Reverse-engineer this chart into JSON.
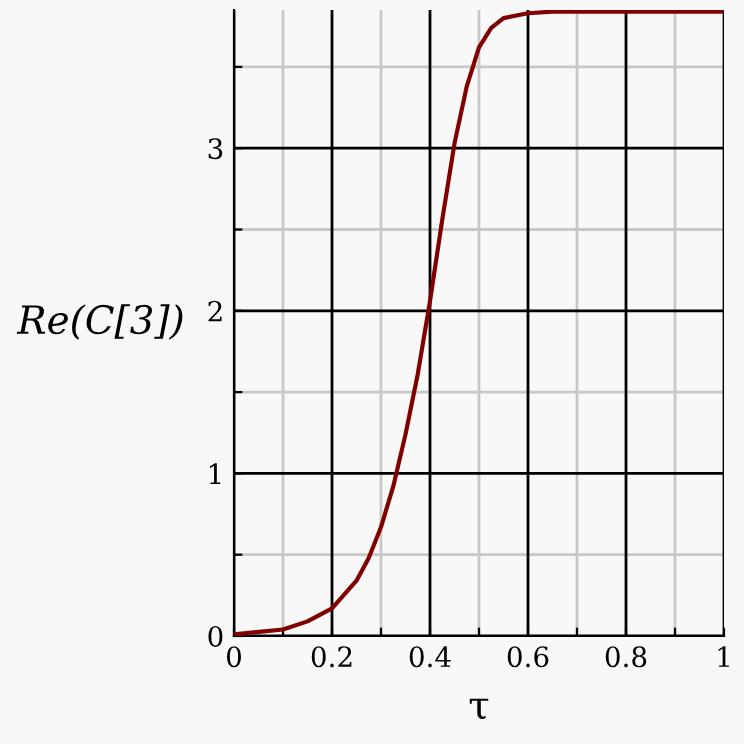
{
  "chart_data": {
    "type": "line",
    "xlabel": "τ",
    "ylabel": "Re(C[3])",
    "x": [
      0,
      0.1,
      0.15,
      0.2,
      0.25,
      0.275,
      0.3,
      0.325,
      0.35,
      0.375,
      0.4,
      0.425,
      0.45,
      0.475,
      0.5,
      0.525,
      0.55,
      0.6,
      0.65,
      1
    ],
    "series": [
      {
        "color": "#800000",
        "values": [
          0.01,
          0.04,
          0.09,
          0.17,
          0.34,
          0.48,
          0.67,
          0.92,
          1.24,
          1.61,
          2.06,
          2.56,
          3.03,
          3.38,
          3.62,
          3.74,
          3.8,
          3.83,
          3.84,
          3.84
        ]
      }
    ],
    "xlim": [
      0,
      1
    ],
    "ylim": [
      0,
      3.85
    ],
    "xticks": [
      0,
      {
        "value": 0.1,
        "label": null
      },
      0.2,
      {
        "value": 0.3,
        "label": null
      },
      0.4,
      {
        "value": 0.5,
        "label": null
      },
      0.6,
      {
        "value": 0.7,
        "label": null
      },
      0.8,
      {
        "value": 0.9,
        "label": null
      },
      1
    ],
    "yticks": [
      0,
      {
        "value": 0.5,
        "label": null
      },
      1,
      {
        "value": 1.5,
        "label": null
      },
      2,
      {
        "value": 2.5,
        "label": null
      },
      3,
      {
        "value": 3.5,
        "label": null
      }
    ],
    "grid": true,
    "marker": "none",
    "line_style": "solid"
  }
}
